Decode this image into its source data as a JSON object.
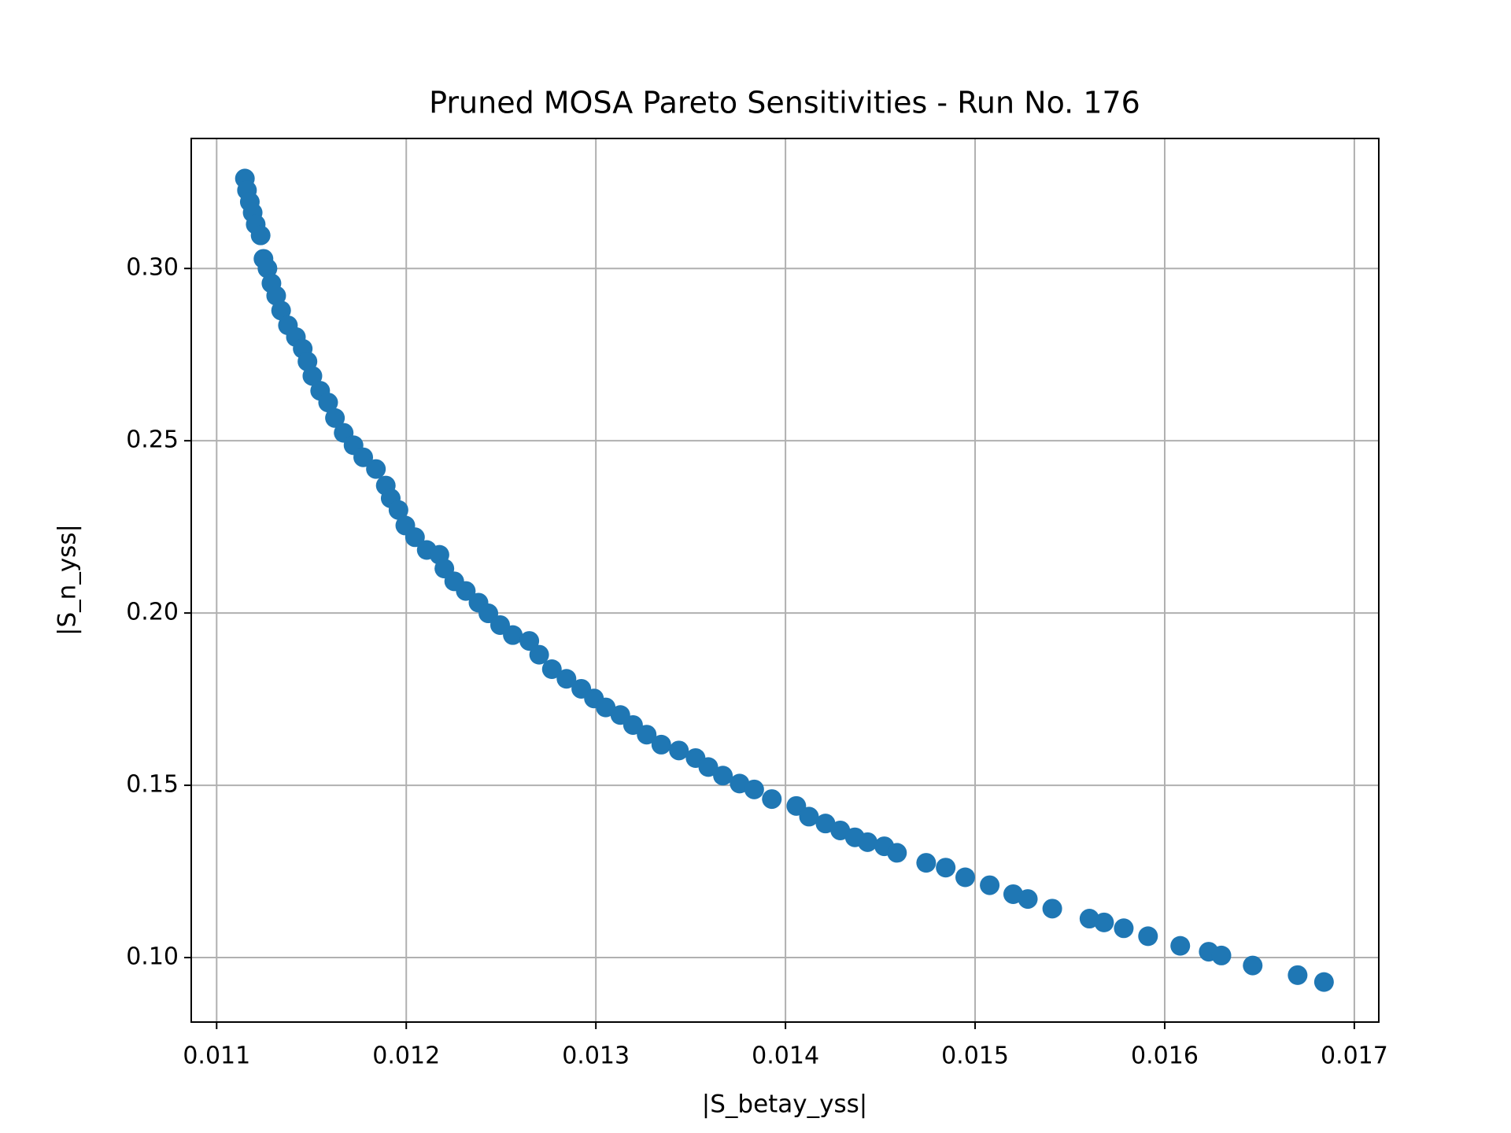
{
  "chart_data": {
    "type": "scatter",
    "title": "Pruned MOSA Pareto Sensitivities - Run No. 176",
    "x_label": "|S_betay_yss|",
    "y_label": "|S_n_yss|",
    "color": "#1f77b4",
    "grid": true,
    "xlim": [
      0.010866,
      0.017129
    ],
    "ylim": [
      0.08128,
      0.33773
    ],
    "xticks": [
      0.011,
      0.012,
      0.013,
      0.014,
      0.015,
      0.016,
      0.017
    ],
    "yticks": [
      {
        "value": 0.1,
        "label": "0.10"
      },
      0.15,
      {
        "value": 0.2,
        "label": "0.20"
      },
      0.25,
      {
        "value": 0.3,
        "label": "0.30"
      }
    ],
    "x": [
      0.011149,
      0.01116,
      0.011175,
      0.01119,
      0.011206,
      0.011232,
      0.011247,
      0.011268,
      0.011289,
      0.011314,
      0.01134,
      0.011376,
      0.011418,
      0.011454,
      0.011479,
      0.011505,
      0.011546,
      0.011588,
      0.011624,
      0.01167,
      0.011722,
      0.011773,
      0.01184,
      0.011892,
      0.011918,
      0.011959,
      0.011995,
      0.012046,
      0.012108,
      0.012175,
      0.012201,
      0.012253,
      0.012314,
      0.012381,
      0.012433,
      0.012495,
      0.012562,
      0.012649,
      0.012701,
      0.012768,
      0.012845,
      0.012923,
      0.01299,
      0.013052,
      0.013129,
      0.013196,
      0.013268,
      0.013345,
      0.013438,
      0.013526,
      0.013593,
      0.01367,
      0.013758,
      0.013835,
      0.013928,
      0.014057,
      0.014124,
      0.014211,
      0.014289,
      0.014366,
      0.014433,
      0.014521,
      0.014588,
      0.014742,
      0.014845,
      0.014948,
      0.015077,
      0.015201,
      0.015278,
      0.015407,
      0.015603,
      0.01568,
      0.015784,
      0.015912,
      0.016082,
      0.016232,
      0.016299,
      0.016464,
      0.016701,
      0.01684
    ],
    "values": [
      0.3261,
      0.3227,
      0.3193,
      0.3162,
      0.3128,
      0.3096,
      0.3028,
      0.3,
      0.2957,
      0.2921,
      0.2878,
      0.2835,
      0.2801,
      0.2767,
      0.273,
      0.2688,
      0.2645,
      0.2611,
      0.2566,
      0.2523,
      0.2487,
      0.2452,
      0.2418,
      0.237,
      0.2333,
      0.2299,
      0.2254,
      0.222,
      0.2183,
      0.2169,
      0.2129,
      0.2092,
      0.2064,
      0.203,
      0.1999,
      0.1965,
      0.1936,
      0.1919,
      0.1879,
      0.1837,
      0.1809,
      0.178,
      0.1752,
      0.1726,
      0.1704,
      0.1675,
      0.1647,
      0.1618,
      0.1601,
      0.1579,
      0.1553,
      0.1528,
      0.1505,
      0.1488,
      0.146,
      0.144,
      0.1409,
      0.1389,
      0.1369,
      0.1349,
      0.1335,
      0.1323,
      0.1304,
      0.1275,
      0.1261,
      0.1233,
      0.121,
      0.1184,
      0.117,
      0.1142,
      0.1113,
      0.1102,
      0.1085,
      0.1062,
      0.1034,
      0.1017,
      0.1006,
      0.0977,
      0.0949,
      0.0929
    ]
  }
}
